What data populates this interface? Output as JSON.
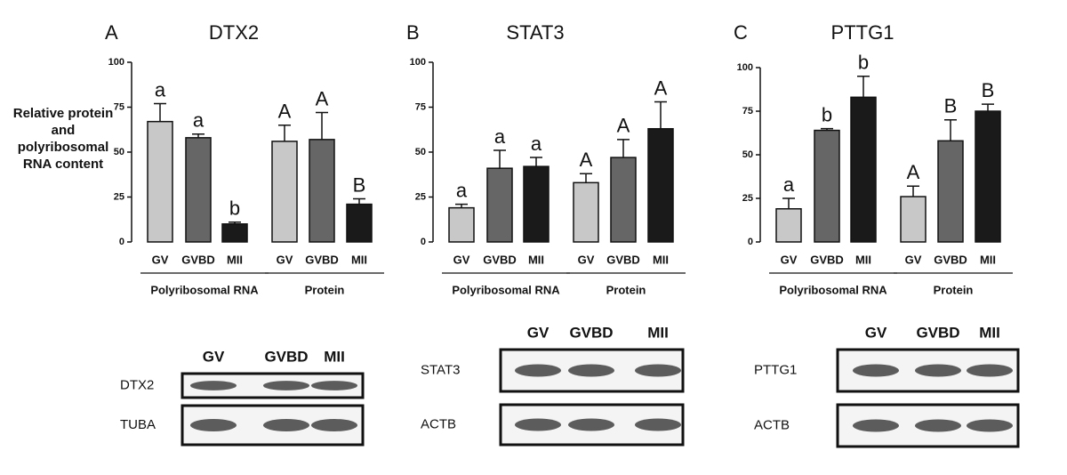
{
  "chart_data": [
    {
      "type": "bar",
      "panel": "A",
      "title": "DTX2",
      "ylabel": "Relative protein and polyribosomal RNA content",
      "categories": [
        "GV",
        "GVBD",
        "MII",
        "GV",
        "GVBD",
        "MII"
      ],
      "groups": [
        "Polyribosomal RNA",
        "Protein"
      ],
      "values": [
        67,
        58,
        10,
        56,
        57,
        21
      ],
      "errors": [
        10,
        2,
        1,
        9,
        15,
        3
      ],
      "colors": [
        "#c8c8c8",
        "#666666",
        "#1a1a1a",
        "#c8c8c8",
        "#666666",
        "#1a1a1a"
      ],
      "sig_labels": [
        "a",
        "a",
        "b",
        "A",
        "A",
        "B"
      ],
      "ylim": [
        0,
        100
      ],
      "yticks": [
        0,
        25,
        50,
        75,
        100
      ],
      "blot": {
        "lanes": [
          "GV",
          "GVBD",
          "MII"
        ],
        "rows": [
          "DTX2",
          "TUBA"
        ]
      }
    },
    {
      "type": "bar",
      "panel": "B",
      "title": "STAT3",
      "categories": [
        "GV",
        "GVBD",
        "MII",
        "GV",
        "GVBD",
        "MII"
      ],
      "groups": [
        "Polyribosomal RNA",
        "Protein"
      ],
      "values": [
        19,
        41,
        42,
        33,
        47,
        63
      ],
      "errors": [
        2,
        10,
        5,
        5,
        10,
        15
      ],
      "colors": [
        "#c8c8c8",
        "#666666",
        "#1a1a1a",
        "#c8c8c8",
        "#666666",
        "#1a1a1a"
      ],
      "sig_labels": [
        "a",
        "a",
        "a",
        "A",
        "A",
        "A"
      ],
      "ylim": [
        0,
        100
      ],
      "yticks": [
        0,
        25,
        50,
        75,
        100
      ],
      "blot": {
        "lanes": [
          "GV",
          "GVBD",
          "MII"
        ],
        "rows": [
          "STAT3",
          "ACTB"
        ]
      }
    },
    {
      "type": "bar",
      "panel": "C",
      "title": "PTTG1",
      "categories": [
        "GV",
        "GVBD",
        "MII",
        "GV",
        "GVBD",
        "MII"
      ],
      "groups": [
        "Polyribosomal RNA",
        "Protein"
      ],
      "values": [
        19,
        64,
        83,
        26,
        58,
        75
      ],
      "errors": [
        6,
        1,
        12,
        6,
        12,
        4
      ],
      "colors": [
        "#c8c8c8",
        "#666666",
        "#1a1a1a",
        "#c8c8c8",
        "#666666",
        "#1a1a1a"
      ],
      "sig_labels": [
        "a",
        "b",
        "b",
        "A",
        "B",
        "B"
      ],
      "ylim": [
        0,
        100
      ],
      "yticks": [
        0,
        25,
        50,
        75,
        100
      ],
      "blot": {
        "lanes": [
          "GV",
          "GVBD",
          "MII"
        ],
        "rows": [
          "PTTG1",
          "ACTB"
        ]
      }
    }
  ]
}
